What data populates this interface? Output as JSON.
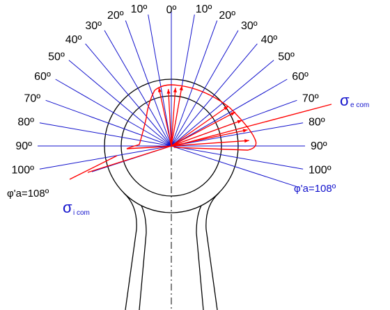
{
  "colors": {
    "ray": "#1010cc",
    "stress": "#ff0000",
    "outline": "#000000",
    "label_blue": "#1010cc",
    "background": "#ffffff"
  },
  "angles": {
    "left": [
      {
        "deg": 0,
        "label": "0º"
      },
      {
        "deg": 10,
        "label": "10º"
      },
      {
        "deg": 20,
        "label": "20º"
      },
      {
        "deg": 30,
        "label": "30º"
      },
      {
        "deg": 40,
        "label": "40º"
      },
      {
        "deg": 50,
        "label": "50º"
      },
      {
        "deg": 60,
        "label": "60º"
      },
      {
        "deg": 70,
        "label": "70º"
      },
      {
        "deg": 80,
        "label": "80º"
      },
      {
        "deg": 90,
        "label": "90º"
      },
      {
        "deg": 100,
        "label": "100º"
      }
    ],
    "right": [
      {
        "deg": 10,
        "label": "10º"
      },
      {
        "deg": 20,
        "label": "20º"
      },
      {
        "deg": 30,
        "label": "30º"
      },
      {
        "deg": 40,
        "label": "40º"
      },
      {
        "deg": 50,
        "label": "50º"
      },
      {
        "deg": 60,
        "label": "60º"
      },
      {
        "deg": 70,
        "label": "70º"
      },
      {
        "deg": 80,
        "label": "80º"
      },
      {
        "deg": 90,
        "label": "90º"
      },
      {
        "deg": 100,
        "label": "100º"
      }
    ]
  },
  "phi_label_left": "φ'a=108º",
  "phi_label_right": "φ'a=108º",
  "phi_angle_deg": 108,
  "sigma_e": {
    "symbol": "σ",
    "subscript": "e com"
  },
  "sigma_i": {
    "symbol": "σ",
    "subscript": "i com"
  }
}
